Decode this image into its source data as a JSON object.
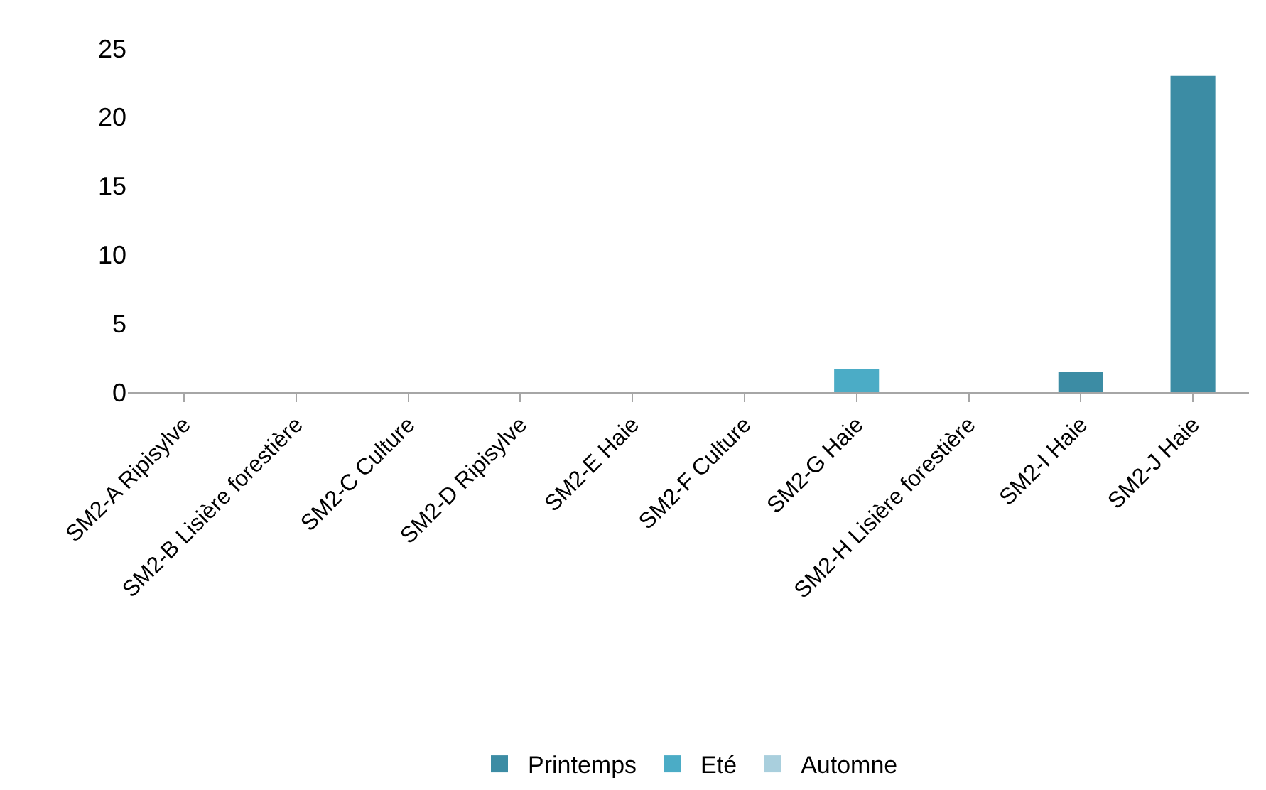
{
  "chart_data": {
    "type": "bar",
    "categories": [
      "SM2-A Ripisylve",
      "SM2-B Lisière forestière",
      "SM2-C Culture",
      "SM2-D Ripisylve",
      "SM2-E Haie",
      "SM2-F Culture",
      "SM2-G Haie",
      "SM2-H Lisière forestière",
      "SM2-I Haie",
      "SM2-J Haie"
    ],
    "series": [
      {
        "name": "Printemps",
        "color": "#3c8ca4",
        "values": [
          0,
          0,
          0,
          0,
          0,
          0,
          0,
          0,
          1.5,
          23
        ]
      },
      {
        "name": "Eté",
        "color": "#4bacc6",
        "values": [
          0,
          0,
          0,
          0,
          0,
          0,
          1.7,
          0,
          0,
          0
        ]
      },
      {
        "name": "Automne",
        "color": "#a9cfdd",
        "values": [
          0,
          0,
          0,
          0,
          0,
          0,
          0,
          0,
          0,
          0
        ]
      }
    ],
    "ylim": [
      0,
      25
    ],
    "yticks": [
      0,
      5,
      10,
      15,
      20,
      25
    ],
    "legend": "bottom"
  }
}
